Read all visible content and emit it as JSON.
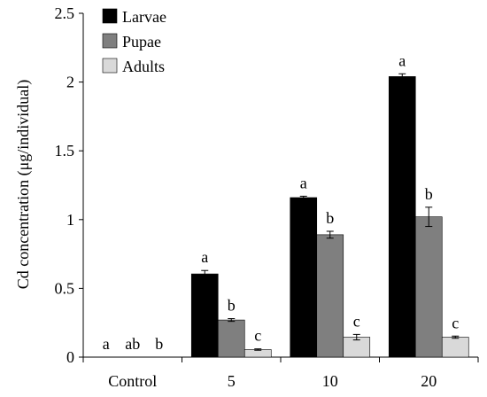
{
  "chart_data": {
    "type": "bar",
    "ylabel": "Cd concentration (μg/individual)",
    "xlabel": "",
    "categories": [
      "Control",
      "5",
      "10",
      "20"
    ],
    "ylim": [
      0,
      2.5
    ],
    "yticks": [
      0,
      0.5,
      1,
      1.5,
      2,
      2.5
    ],
    "ytick_labels": [
      "0",
      "0.5",
      "1",
      "1.5",
      "2",
      "2.5"
    ],
    "legend_position": "top-left",
    "grid": false,
    "series": [
      {
        "name": "Larvae",
        "color": "#000000",
        "values": [
          0,
          0.605,
          1.16,
          2.04
        ],
        "errors": [
          0,
          0.025,
          0.01,
          0.02
        ],
        "letters": [
          "a",
          "a",
          "a",
          "a"
        ]
      },
      {
        "name": "Pupae",
        "color": "#7f7f7f",
        "values": [
          0,
          0.27,
          0.89,
          1.02
        ],
        "errors": [
          0,
          0.01,
          0.025,
          0.07
        ],
        "letters": [
          "ab",
          "b",
          "b",
          "b"
        ]
      },
      {
        "name": "Adults",
        "color": "#d9d9d9",
        "values": [
          0,
          0.055,
          0.145,
          0.145
        ],
        "errors": [
          0,
          0.005,
          0.02,
          0.008
        ],
        "letters": [
          "b",
          "c",
          "c",
          "c"
        ]
      }
    ]
  }
}
